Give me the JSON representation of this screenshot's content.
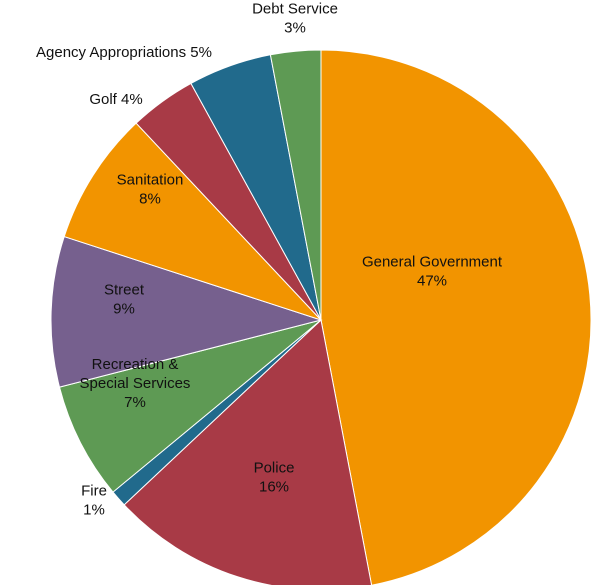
{
  "chart_data": {
    "type": "pie",
    "title": "",
    "slices": [
      {
        "name": "General Government",
        "value": 47,
        "label_lines": [
          "General Government",
          "47%"
        ],
        "color": "#F29400"
      },
      {
        "name": "Police",
        "value": 16,
        "label_lines": [
          "Police",
          "16%"
        ],
        "color": "#A83A46"
      },
      {
        "name": "Fire",
        "value": 1,
        "label_lines": [
          "Fire",
          "1%"
        ],
        "color": "#216A8C"
      },
      {
        "name": "Recreation & Special Services",
        "value": 7,
        "label_lines": [
          "Recreation &",
          "Special Services",
          "7%"
        ],
        "color": "#5E9A54"
      },
      {
        "name": "Street",
        "value": 9,
        "label_lines": [
          "Street",
          "9%"
        ],
        "color": "#76608E"
      },
      {
        "name": "Sanitation",
        "value": 8,
        "label_lines": [
          "Sanitation",
          "8%"
        ],
        "color": "#F29400"
      },
      {
        "name": "Golf",
        "value": 4,
        "label_lines": [
          "Golf 4%"
        ],
        "color": "#A83A46"
      },
      {
        "name": "Agency Appropriations",
        "value": 5,
        "label_lines": [
          "Agency Appropriations 5%"
        ],
        "color": "#216A8C"
      },
      {
        "name": "Debt Service",
        "value": 3,
        "label_lines": [
          "Debt Service",
          "3%"
        ],
        "color": "#5E9A54"
      }
    ]
  }
}
